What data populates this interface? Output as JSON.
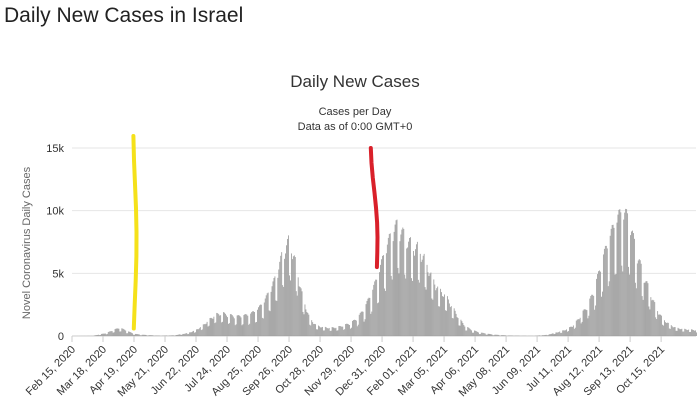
{
  "page": {
    "heading": "Daily New Cases in Israel"
  },
  "chart_data": {
    "type": "bar",
    "title": "Daily New Cases",
    "subtitle_lines": [
      "Cases per Day",
      "Data as of 0:00 GMT+0"
    ],
    "ylabel": "Novel Coronavirus Daily Cases",
    "ylim": [
      0,
      15000
    ],
    "y_ticks": [
      0,
      5000,
      10000,
      15000
    ],
    "y_tick_labels": [
      "0",
      "5k",
      "10k",
      "15k"
    ],
    "x_range": [
      "2020-02-15",
      "2021-11-20"
    ],
    "x_tick_dates": [
      "2020-02-15",
      "2020-03-18",
      "2020-04-19",
      "2020-05-21",
      "2020-06-22",
      "2020-07-24",
      "2020-08-25",
      "2020-09-26",
      "2020-10-28",
      "2020-11-29",
      "2020-12-31",
      "2021-02-01",
      "2021-03-05",
      "2021-04-06",
      "2021-05-08",
      "2021-06-09",
      "2021-07-11",
      "2021-08-12",
      "2021-09-13",
      "2021-10-15"
    ],
    "x_tick_labels": [
      "Feb 15, 2020",
      "Mar 18, 2020",
      "Apr 19, 2020",
      "May 21, 2020",
      "Jun 22, 2020",
      "Jul 24, 2020",
      "Aug 25, 2020",
      "Sep 26, 2020",
      "Oct 28, 2020",
      "Nov 29, 2020",
      "Dec 31, 2020",
      "Feb 01, 2021",
      "Mar 05, 2021",
      "Apr 06, 2021",
      "May 08, 2021",
      "Jun 09, 2021",
      "Jul 11, 2021",
      "Aug 12, 2021",
      "Sep 13, 2021",
      "Oct 15, 2021"
    ],
    "bar_color": "#999999",
    "series_note": "estimated weekly peak levels of daily new cases (daily bars interpolated)",
    "weekly_levels": [
      [
        "2020-02-15",
        0
      ],
      [
        "2020-03-07",
        15
      ],
      [
        "2020-03-21",
        250
      ],
      [
        "2020-03-28",
        500
      ],
      [
        "2020-04-04",
        700
      ],
      [
        "2020-04-11",
        450
      ],
      [
        "2020-04-18",
        200
      ],
      [
        "2020-04-25",
        120
      ],
      [
        "2020-05-02",
        80
      ],
      [
        "2020-05-16",
        30
      ],
      [
        "2020-05-30",
        60
      ],
      [
        "2020-06-06",
        150
      ],
      [
        "2020-06-13",
        250
      ],
      [
        "2020-06-20",
        450
      ],
      [
        "2020-06-27",
        800
      ],
      [
        "2020-07-04",
        1300
      ],
      [
        "2020-07-11",
        1800
      ],
      [
        "2020-07-18",
        1950
      ],
      [
        "2020-07-25",
        1800
      ],
      [
        "2020-08-01",
        1650
      ],
      [
        "2020-08-08",
        1700
      ],
      [
        "2020-08-15",
        1800
      ],
      [
        "2020-08-22",
        2100
      ],
      [
        "2020-08-29",
        2700
      ],
      [
        "2020-09-05",
        3700
      ],
      [
        "2020-09-12",
        5000
      ],
      [
        "2020-09-19",
        7000
      ],
      [
        "2020-09-26",
        8200
      ],
      [
        "2020-10-03",
        6000
      ],
      [
        "2020-10-10",
        3200
      ],
      [
        "2020-10-17",
        1500
      ],
      [
        "2020-10-24",
        900
      ],
      [
        "2020-10-31",
        750
      ],
      [
        "2020-11-07",
        700
      ],
      [
        "2020-11-14",
        750
      ],
      [
        "2020-11-21",
        900
      ],
      [
        "2020-11-28",
        1100
      ],
      [
        "2020-12-05",
        1500
      ],
      [
        "2020-12-12",
        2300
      ],
      [
        "2020-12-19",
        3500
      ],
      [
        "2020-12-26",
        5000
      ],
      [
        "2021-01-02",
        7000
      ],
      [
        "2021-01-09",
        8600
      ],
      [
        "2021-01-16",
        9500
      ],
      [
        "2021-01-23",
        8400
      ],
      [
        "2021-01-30",
        7800
      ],
      [
        "2021-02-06",
        7500
      ],
      [
        "2021-02-13",
        6500
      ],
      [
        "2021-02-20",
        5000
      ],
      [
        "2021-02-27",
        4000
      ],
      [
        "2021-03-06",
        3500
      ],
      [
        "2021-03-13",
        2500
      ],
      [
        "2021-03-20",
        1500
      ],
      [
        "2021-03-27",
        800
      ],
      [
        "2021-04-03",
        500
      ],
      [
        "2021-04-10",
        300
      ],
      [
        "2021-04-24",
        120
      ],
      [
        "2021-05-08",
        50
      ],
      [
        "2021-05-22",
        25
      ],
      [
        "2021-06-05",
        15
      ],
      [
        "2021-06-19",
        100
      ],
      [
        "2021-06-26",
        250
      ],
      [
        "2021-07-03",
        400
      ],
      [
        "2021-07-10",
        600
      ],
      [
        "2021-07-17",
        1000
      ],
      [
        "2021-07-24",
        1800
      ],
      [
        "2021-07-31",
        2600
      ],
      [
        "2021-08-07",
        4000
      ],
      [
        "2021-08-14",
        6200
      ],
      [
        "2021-08-21",
        8000
      ],
      [
        "2021-08-28",
        9500
      ],
      [
        "2021-09-04",
        10500
      ],
      [
        "2021-09-11",
        10000
      ],
      [
        "2021-09-18",
        7500
      ],
      [
        "2021-09-25",
        5500
      ],
      [
        "2021-10-02",
        4000
      ],
      [
        "2021-10-09",
        2500
      ],
      [
        "2021-10-16",
        1500
      ],
      [
        "2021-10-23",
        1000
      ],
      [
        "2021-10-30",
        700
      ],
      [
        "2021-11-06",
        600
      ],
      [
        "2021-11-20",
        500
      ]
    ]
  },
  "annotations": [
    {
      "name": "yellow-marker",
      "color": "#f5e11a",
      "date": "2020-04-20",
      "top_value": 16000,
      "bottom_value": 600
    },
    {
      "name": "red-marker",
      "color": "#d9202a",
      "date": "2020-12-21",
      "top_value": 15000,
      "bottom_value": 5500
    }
  ]
}
